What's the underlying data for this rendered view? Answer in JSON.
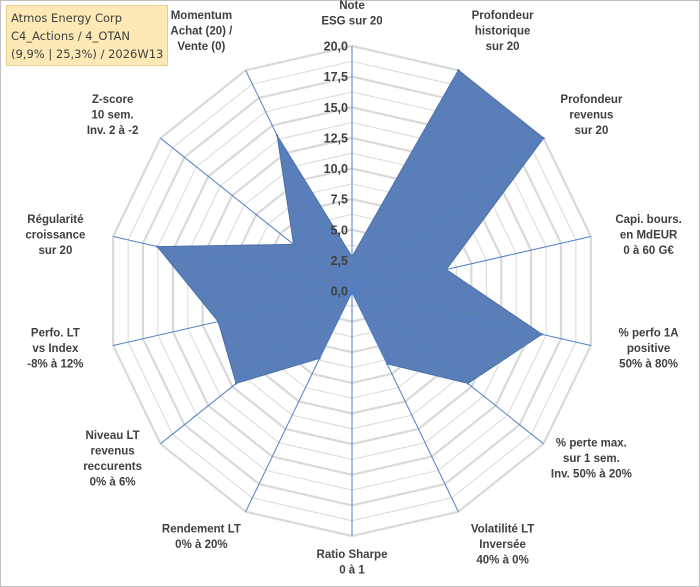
{
  "info_box": {
    "line1": "Atmos Energy Corp",
    "line2": "C4_Actions / 4_OTAN",
    "line3": "(9,9% | 25,3%) / 2026W13"
  },
  "colors": {
    "fill": "#5a7fb8",
    "stroke": "#4a6fa8",
    "grid": "#d9d9d9",
    "spoke": "#4f7fc8",
    "text": "#404040"
  },
  "chart_data": {
    "type": "radar",
    "rmin": 0,
    "rmax": 20,
    "tick_labels": [
      "0,0",
      "2,5",
      "5,0",
      "7,5",
      "10,0",
      "12,5",
      "15,0",
      "17,5",
      "20,0"
    ],
    "axes": [
      {
        "label": [
          "Note",
          "ESG sur 20"
        ],
        "value": 2.8
      },
      {
        "label": [
          "Profondeur",
          "historique",
          "sur 20"
        ],
        "value": 20.0
      },
      {
        "label": [
          "Profondeur",
          "revenus",
          "sur 20"
        ],
        "value": 20.0
      },
      {
        "label": [
          "Capi. bours.",
          "en MdEUR",
          "0 à 60 G€"
        ],
        "value": 7.9
      },
      {
        "label": [
          "% perfo 1A",
          "positive",
          "50% à 80%"
        ],
        "value": 15.9
      },
      {
        "label": [
          "% perte max.",
          "sur 1 sem.",
          "Inv. 50% à 20%"
        ],
        "value": 12.1
      },
      {
        "label": [
          "Volatilité LT",
          "Inversée",
          "40% à 0%"
        ],
        "value": 6.6
      },
      {
        "label": [
          "Ratio Sharpe",
          "0 à 1"
        ],
        "value": 0.1
      },
      {
        "label": [
          "Rendement LT",
          "0% à 20%"
        ],
        "value": 6.1
      },
      {
        "label": [
          "Niveau LT",
          "revenus",
          "reccurents",
          "0% à 6%"
        ],
        "value": 12.1
      },
      {
        "label": [
          "Perfo. LT",
          "vs Index",
          "-8% à 12%"
        ],
        "value": 11.2
      },
      {
        "label": [
          "Régularité",
          "croissance",
          "sur 20"
        ],
        "value": 16.3
      },
      {
        "label": [
          "Z-score",
          "10 sem.",
          "Inv. 2 à -2"
        ],
        "value": 6.1
      },
      {
        "label": [
          "Momentum",
          "Achat (20) /",
          "Vente (0)"
        ],
        "value": 14.1
      }
    ]
  }
}
